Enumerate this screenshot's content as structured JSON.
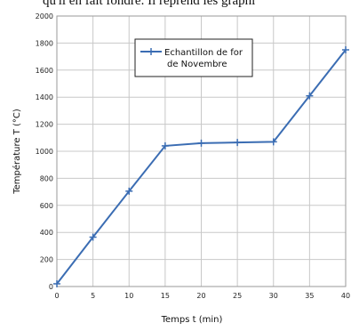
{
  "page": {
    "caption": "qu'il en fait fondre. Il reprend les graphi"
  },
  "chart_data": {
    "type": "line",
    "title": "",
    "xlabel": "Temps t (min)",
    "ylabel": "Température T (°C)",
    "xlim": [
      0,
      40
    ],
    "ylim": [
      0,
      2000
    ],
    "xticks": [
      0,
      5,
      10,
      15,
      20,
      25,
      30,
      35,
      40
    ],
    "yticks": [
      0,
      200,
      400,
      600,
      800,
      1000,
      1200,
      1400,
      1600,
      1800,
      2000
    ],
    "grid": true,
    "legend_position": "top-center",
    "series": [
      {
        "name": "Echantillon de for de  Novembre",
        "name_lines": [
          "Echantillon de for",
          "de  Novembre"
        ],
        "color": "#3b6db3",
        "marker": "plus",
        "x": [
          0,
          5,
          10,
          15,
          20,
          25,
          30,
          35,
          40
        ],
        "y": [
          20,
          365,
          705,
          1040,
          1060,
          1065,
          1070,
          1410,
          1750
        ]
      }
    ]
  }
}
